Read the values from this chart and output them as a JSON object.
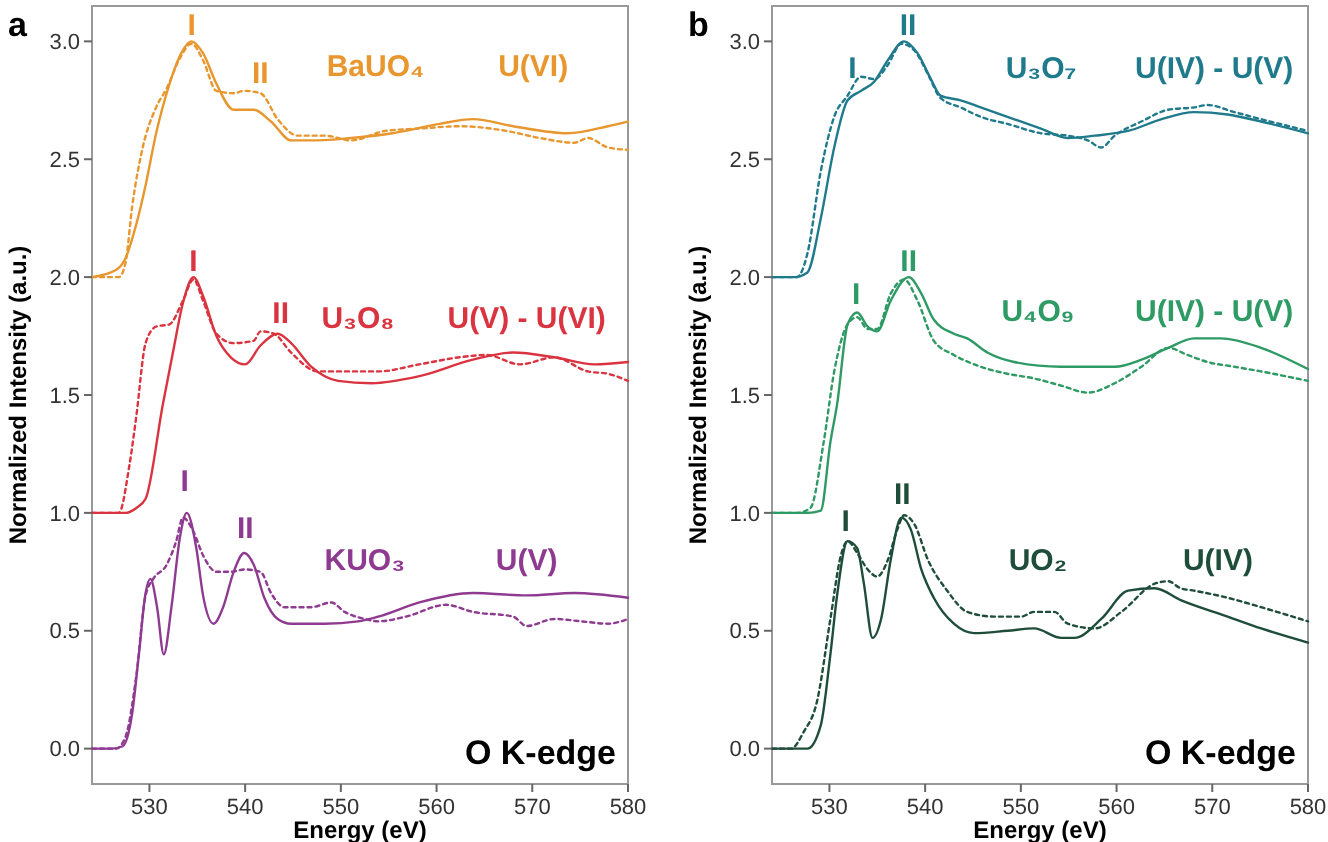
{
  "chart_data": [
    {
      "type": "line",
      "title": "a",
      "xlabel": "Energy (eV)",
      "ylabel": "Normalized Intensity (a.u.)",
      "xlim": [
        524,
        580
      ],
      "ylim": [
        -0.15,
        3.15
      ],
      "xticks": [
        530,
        540,
        550,
        560,
        570,
        580
      ],
      "yticks": [
        {
          "value": 0,
          "label": "0.0"
        },
        {
          "value": 0.5,
          "label": "0.5"
        },
        {
          "value": 1,
          "label": "1.0"
        },
        {
          "value": 1.5,
          "label": "1.5"
        },
        {
          "value": 2,
          "label": "2.0"
        },
        {
          "value": 2.5,
          "label": "2.5"
        },
        {
          "value": 3,
          "label": "3.0"
        }
      ],
      "series": [
        {
          "color": "#e8962e",
          "x": [
            524,
            526.5,
            527.5,
            528.6,
            529.6,
            530.7,
            532.1,
            533.2,
            534.4,
            535.6,
            537.0,
            538.8,
            540.9,
            542.7,
            544.8,
            547.6,
            551.1,
            555.4,
            560.3,
            563.8,
            568.0,
            573.7,
            577.9,
            580
          ],
          "values": [
            2.0,
            2.03,
            2.08,
            2.22,
            2.39,
            2.61,
            2.82,
            2.94,
            3.0,
            2.95,
            2.82,
            2.71,
            2.71,
            2.66,
            2.58,
            2.58,
            2.59,
            2.61,
            2.65,
            2.67,
            2.64,
            2.61,
            2.64,
            2.66
          ]
        },
        {
          "color": "#e8962e",
          "line_style": "dotted",
          "x": [
            524,
            526.8,
            527.5,
            528.2,
            529.3,
            530.7,
            531.8,
            533.2,
            534.4,
            535.6,
            537.0,
            538.8,
            539.9,
            541.6,
            543.4,
            545.5,
            548.3,
            551.1,
            554.6,
            558.2,
            562.4,
            567.3,
            570.8,
            574.4,
            575.8,
            577.9,
            580
          ],
          "values": [
            2.0,
            2.0,
            2.06,
            2.3,
            2.55,
            2.72,
            2.8,
            2.93,
            2.99,
            2.92,
            2.79,
            2.78,
            2.79,
            2.78,
            2.67,
            2.6,
            2.6,
            2.58,
            2.62,
            2.63,
            2.64,
            2.62,
            2.59,
            2.57,
            2.59,
            2.55,
            2.54
          ]
        },
        {
          "color": "#d9343f",
          "x": [
            524,
            527.5,
            528.6,
            529.6,
            531.4,
            532.5,
            533.5,
            534.6,
            535.6,
            537.0,
            538.5,
            540.0,
            541.6,
            543.4,
            544.8,
            546.9,
            549.7,
            553.2,
            558.2,
            563.8,
            568.0,
            572.3,
            576.5,
            580
          ],
          "values": [
            1.0,
            1.0,
            1.02,
            1.06,
            1.46,
            1.69,
            1.89,
            2.0,
            1.92,
            1.75,
            1.66,
            1.63,
            1.71,
            1.76,
            1.72,
            1.62,
            1.56,
            1.55,
            1.58,
            1.65,
            1.68,
            1.66,
            1.63,
            1.64
          ]
        },
        {
          "color": "#d9343f",
          "line_style": "dotted",
          "x": [
            524,
            526.8,
            527.9,
            528.6,
            529.6,
            530.7,
            532.1,
            533.5,
            534.6,
            535.6,
            537.0,
            538.8,
            540.9,
            541.6,
            543.0,
            544.8,
            547.6,
            551.1,
            553.9,
            558.2,
            562.4,
            565.2,
            568.7,
            572.3,
            575.8,
            577.9,
            580
          ],
          "values": [
            1.0,
            1.0,
            1.2,
            1.4,
            1.72,
            1.79,
            1.8,
            1.9,
            1.99,
            1.9,
            1.76,
            1.72,
            1.73,
            1.77,
            1.76,
            1.68,
            1.6,
            1.6,
            1.6,
            1.63,
            1.66,
            1.67,
            1.63,
            1.66,
            1.6,
            1.59,
            1.56
          ]
        },
        {
          "color": "#8e3a91",
          "x": [
            524,
            526.1,
            527.2,
            528.2,
            528.9,
            529.6,
            530.1,
            530.8,
            531.5,
            532.3,
            533.2,
            533.9,
            534.9,
            535.6,
            536.7,
            537.7,
            538.8,
            539.9,
            540.9,
            542.0,
            543.4,
            544.8,
            548.3,
            551.8,
            553.9,
            558.2,
            563.8,
            569.4,
            574.4,
            580
          ],
          "values": [
            0,
            0,
            0.01,
            0.15,
            0.4,
            0.66,
            0.72,
            0.6,
            0.4,
            0.6,
            0.9,
            1.0,
            0.85,
            0.65,
            0.53,
            0.6,
            0.75,
            0.83,
            0.78,
            0.64,
            0.55,
            0.53,
            0.53,
            0.54,
            0.56,
            0.62,
            0.66,
            0.65,
            0.66,
            0.64
          ]
        },
        {
          "color": "#8e3a91",
          "line_style": "dotted",
          "x": [
            524,
            526.5,
            527.5,
            528.6,
            529.6,
            530.4,
            531.8,
            532.8,
            533.5,
            534.6,
            535.6,
            537.0,
            538.5,
            539.9,
            541.6,
            542.7,
            544.1,
            546.9,
            549.0,
            550.4,
            552.5,
            553.9,
            556.8,
            561.0,
            563.8,
            568.0,
            569.4,
            572.3,
            575.1,
            577.9,
            580
          ],
          "values": [
            0,
            0,
            0.05,
            0.3,
            0.65,
            0.72,
            0.78,
            0.88,
            0.98,
            0.92,
            0.82,
            0.75,
            0.75,
            0.76,
            0.75,
            0.66,
            0.6,
            0.6,
            0.62,
            0.58,
            0.55,
            0.54,
            0.56,
            0.61,
            0.58,
            0.56,
            0.52,
            0.55,
            0.54,
            0.53,
            0.55
          ]
        }
      ],
      "annotations": [
        "I",
        "II",
        "BaUO₄",
        "U(VI)",
        "I",
        "II",
        "U₃O₈",
        "U(V) - U(VI)",
        "I",
        "II",
        "KUO₃",
        "U(V)",
        "O K-edge"
      ]
    },
    {
      "type": "line",
      "title": "b",
      "xlabel": "Energy (eV)",
      "ylabel": "Normalized Intensity (a.u.)",
      "xlim": [
        524,
        580
      ],
      "ylim": [
        -0.15,
        3.15
      ],
      "xticks": [
        530,
        540,
        550,
        560,
        570,
        580
      ],
      "yticks": [
        {
          "value": 0,
          "label": "0.0"
        },
        {
          "value": 0.5,
          "label": "0.5"
        },
        {
          "value": 1,
          "label": "1.0"
        },
        {
          "value": 1.5,
          "label": "1.5"
        },
        {
          "value": 2,
          "label": "2.0"
        },
        {
          "value": 2.5,
          "label": "2.5"
        },
        {
          "value": 3,
          "label": "3.0"
        }
      ],
      "series": [
        {
          "color": "#1f7a8c",
          "x": [
            524,
            526.3,
            527.7,
            529.1,
            530.5,
            531.9,
            533.3,
            534.7,
            536.1,
            537.8,
            539.2,
            540.6,
            541.6,
            543.7,
            545.8,
            548.6,
            552.1,
            554.9,
            557.7,
            561.2,
            564.7,
            568.1,
            571.6,
            575.1,
            580
          ],
          "values": [
            2.0,
            2.0,
            2.02,
            2.25,
            2.55,
            2.75,
            2.79,
            2.83,
            2.92,
            3.0,
            2.95,
            2.84,
            2.77,
            2.75,
            2.72,
            2.68,
            2.63,
            2.59,
            2.6,
            2.62,
            2.67,
            2.7,
            2.69,
            2.66,
            2.61
          ]
        },
        {
          "color": "#1f7a8c",
          "line_style": "dotted",
          "x": [
            524,
            526.6,
            527.7,
            529.1,
            530.5,
            531.9,
            533.3,
            534.7,
            536.1,
            537.5,
            538.9,
            540.3,
            541.6,
            543.7,
            545.8,
            548.6,
            552.1,
            554.9,
            557.0,
            558.4,
            559.8,
            562.6,
            565.4,
            568.1,
            569.5,
            572.3,
            575.1,
            580
          ],
          "values": [
            2.0,
            2.0,
            2.1,
            2.45,
            2.68,
            2.77,
            2.85,
            2.84,
            2.9,
            2.99,
            2.96,
            2.86,
            2.76,
            2.72,
            2.68,
            2.65,
            2.61,
            2.6,
            2.58,
            2.55,
            2.6,
            2.66,
            2.71,
            2.72,
            2.73,
            2.7,
            2.67,
            2.62
          ]
        },
        {
          "color": "#2e9a64",
          "x": [
            524,
            527.7,
            529.1,
            530.1,
            530.8,
            531.9,
            532.9,
            534.0,
            535.0,
            536.4,
            538.3,
            539.6,
            540.9,
            543.0,
            544.4,
            546.5,
            549.3,
            554.2,
            559.8,
            562.6,
            565.4,
            568.1,
            570.9,
            575.1,
            580
          ],
          "values": [
            1.0,
            1.0,
            1.01,
            1.3,
            1.46,
            1.8,
            1.85,
            1.79,
            1.77,
            1.9,
            2.0,
            1.93,
            1.82,
            1.76,
            1.74,
            1.68,
            1.64,
            1.62,
            1.62,
            1.65,
            1.7,
            1.74,
            1.74,
            1.7,
            1.61
          ]
        },
        {
          "color": "#2e9a64",
          "line_style": "dotted",
          "x": [
            524,
            526.6,
            528.0,
            529.4,
            530.5,
            531.9,
            532.9,
            534.0,
            535.0,
            536.4,
            537.8,
            539.2,
            540.9,
            543.0,
            545.8,
            548.6,
            551.4,
            554.2,
            557.0,
            559.8,
            562.6,
            565.4,
            567.4,
            569.5,
            572.3,
            575.1,
            580
          ],
          "values": [
            1.0,
            1.0,
            1.02,
            1.3,
            1.6,
            1.8,
            1.83,
            1.78,
            1.78,
            1.93,
            1.99,
            1.9,
            1.73,
            1.67,
            1.62,
            1.59,
            1.57,
            1.54,
            1.51,
            1.55,
            1.62,
            1.7,
            1.67,
            1.64,
            1.62,
            1.6,
            1.56
          ]
        },
        {
          "color": "#1e4d3a",
          "x": [
            524,
            527.7,
            529.1,
            530.1,
            530.8,
            531.9,
            532.9,
            533.6,
            534.5,
            535.4,
            536.4,
            537.5,
            538.5,
            539.6,
            540.9,
            543.0,
            545.1,
            548.6,
            551.4,
            554.2,
            555.6,
            558.4,
            561.2,
            564.0,
            566.7,
            571.6,
            575.1,
            580
          ],
          "values": [
            0,
            0,
            0.1,
            0.4,
            0.65,
            0.88,
            0.85,
            0.7,
            0.47,
            0.55,
            0.8,
            0.98,
            0.93,
            0.76,
            0.64,
            0.53,
            0.49,
            0.5,
            0.51,
            0.47,
            0.47,
            0.55,
            0.67,
            0.68,
            0.63,
            0.56,
            0.51,
            0.45
          ]
        },
        {
          "color": "#1e4d3a",
          "line_style": "dotted",
          "x": [
            524,
            526.0,
            527.3,
            528.7,
            530.1,
            531.2,
            531.9,
            532.9,
            534.0,
            535.0,
            536.1,
            537.1,
            537.8,
            538.9,
            540.3,
            542.3,
            544.4,
            547.2,
            550.0,
            551.4,
            553.5,
            554.9,
            557.7,
            560.5,
            564.0,
            565.4,
            566.7,
            568.1,
            571.6,
            575.1,
            580
          ],
          "values": [
            0,
            0,
            0.07,
            0.2,
            0.55,
            0.82,
            0.88,
            0.83,
            0.76,
            0.73,
            0.8,
            0.93,
            0.99,
            0.95,
            0.8,
            0.67,
            0.58,
            0.56,
            0.56,
            0.58,
            0.58,
            0.53,
            0.51,
            0.58,
            0.7,
            0.71,
            0.68,
            0.67,
            0.64,
            0.6,
            0.54
          ]
        }
      ],
      "annotations": [
        "I",
        "II",
        "U₃O₇",
        "U(IV) - U(V)",
        "I",
        "II",
        "U₄O₉",
        "U(IV) - U(V)",
        "I",
        "II",
        "UO₂",
        "U(IV)",
        "O K-edge"
      ]
    }
  ]
}
